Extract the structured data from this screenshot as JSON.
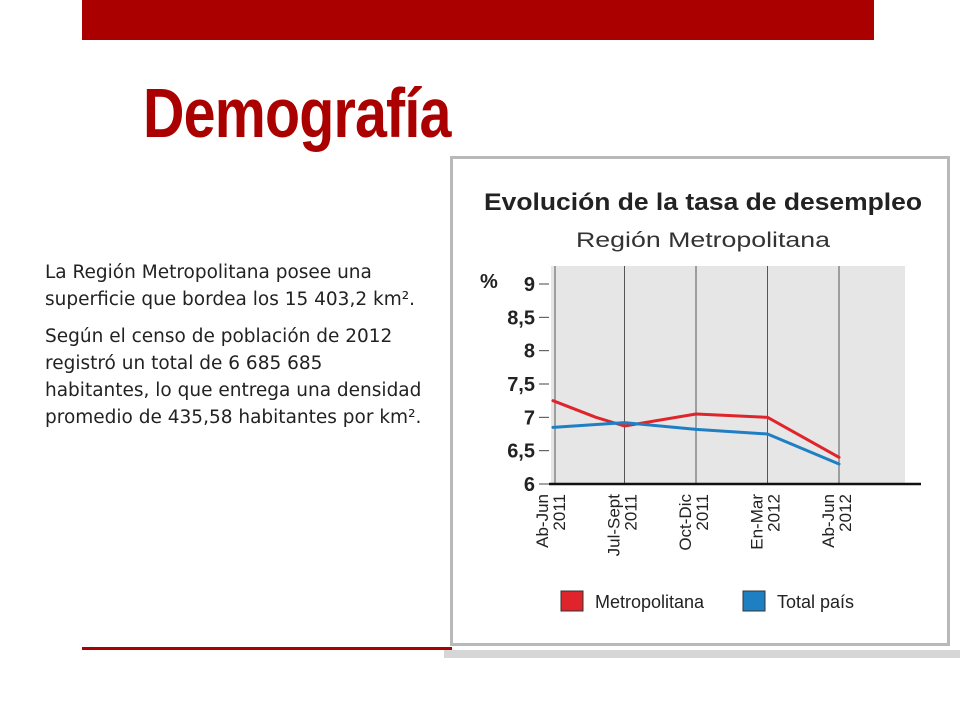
{
  "slide": {
    "title": "Demografía",
    "paragraphs": [
      "La Región Metropolitana posee una superficie que bordea los 15 403,2 km².",
      "Según el censo de población de 2012 registró un total de 6 685 685 habitantes, lo que entrega una densidad promedio de 435,58 habitantes por km²."
    ]
  },
  "colors": {
    "accent": "#aa0000",
    "metropolitana": "#e0242b",
    "total_pais": "#1f7fc3"
  },
  "chart_data": {
    "type": "line",
    "title": "Evolución de la tasa de desempleo",
    "subtitle": "Región Metropolitana",
    "ylabel": "%",
    "xlabel": "",
    "ylim": [
      6,
      9
    ],
    "yticks": [
      9,
      8.5,
      8,
      7.5,
      7,
      6.5,
      6
    ],
    "ytick_labels": [
      "9",
      "8,5",
      "8",
      "7,5",
      "7",
      "6,5",
      "6"
    ],
    "categories": [
      [
        "Ab-Jun",
        "2011"
      ],
      [
        "Jul-Sept",
        "2011"
      ],
      [
        "Oct-Dic",
        "2011"
      ],
      [
        "En-Mar",
        "2012"
      ],
      [
        "Ab-Jun",
        "2012"
      ]
    ],
    "series": [
      {
        "name": "Metropolitana",
        "color": "#e0242b",
        "x": [
          0,
          0.6,
          1.0,
          2.0,
          3.0,
          4.0
        ],
        "values": [
          7.25,
          7.0,
          6.87,
          7.05,
          7.0,
          6.4
        ]
      },
      {
        "name": "Total país",
        "color": "#1f7fc3",
        "x": [
          0,
          1.0,
          2.0,
          3.0,
          4.0
        ],
        "values": [
          6.85,
          6.92,
          6.82,
          6.75,
          6.3
        ]
      }
    ],
    "grid": true,
    "legend": "bottom"
  }
}
